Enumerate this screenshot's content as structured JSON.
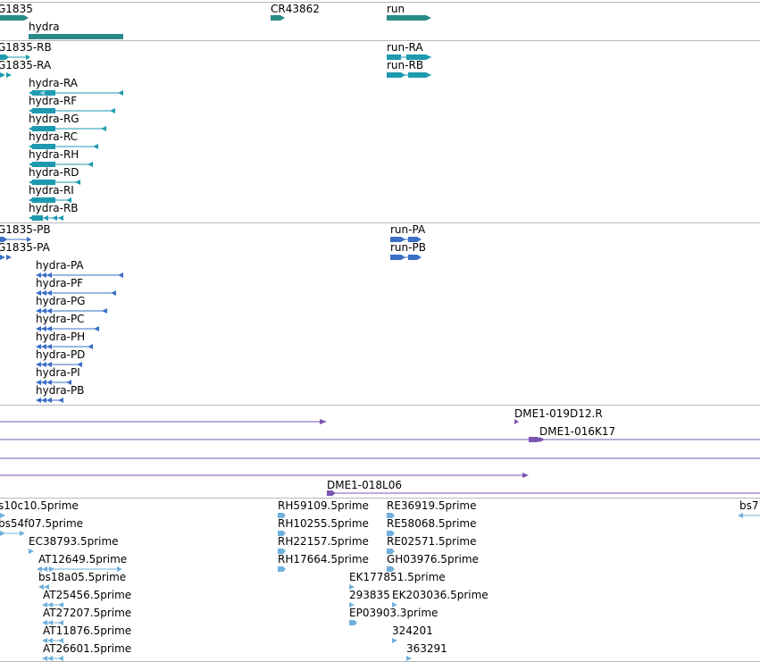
{
  "tracks": [
    {
      "id": "genes",
      "color": "#2a8a87",
      "features": [
        {
          "label": "G1835",
          "style": "block-arrow"
        },
        {
          "label": "CR43862",
          "style": "block-arrow"
        },
        {
          "label": "run",
          "style": "block-arrow"
        },
        {
          "label": "hydra",
          "style": "block"
        }
      ]
    },
    {
      "id": "transcripts",
      "color": "#1e9ab0",
      "features": [
        {
          "label": "G1835-RB"
        },
        {
          "label": "G1835-RA"
        },
        {
          "label": "run-RA"
        },
        {
          "label": "run-RB"
        },
        {
          "label": "hydra-RA"
        },
        {
          "label": "hydra-RF"
        },
        {
          "label": "hydra-RG"
        },
        {
          "label": "hydra-RC"
        },
        {
          "label": "hydra-RH"
        },
        {
          "label": "hydra-RD"
        },
        {
          "label": "hydra-RI"
        },
        {
          "label": "hydra-RB"
        }
      ]
    },
    {
      "id": "proteins",
      "color": "#3a6fc6",
      "features": [
        {
          "label": "G1835-PB"
        },
        {
          "label": "G1835-PA"
        },
        {
          "label": "run-PA"
        },
        {
          "label": "run-PB"
        },
        {
          "label": "hydra-PA"
        },
        {
          "label": "hydra-PF"
        },
        {
          "label": "hydra-PG"
        },
        {
          "label": "hydra-PC"
        },
        {
          "label": "hydra-PH"
        },
        {
          "label": "hydra-PD"
        },
        {
          "label": "hydra-PI"
        },
        {
          "label": "hydra-PB"
        }
      ]
    },
    {
      "id": "clones",
      "color": "#7b55b0",
      "features": [
        {
          "label": "DME1-019D12.R"
        },
        {
          "label": "DME1-016K17"
        },
        {
          "label": "DME1-018L06"
        },
        {
          "label": ""
        },
        {
          "label": ""
        },
        {
          "label": ""
        }
      ]
    },
    {
      "id": "ests",
      "color": "#6fb0dc",
      "features": [
        {
          "label": "s10c10.5prime"
        },
        {
          "label": "bs54f07.5prime"
        },
        {
          "label": "EC38793.5prime"
        },
        {
          "label": "AT12649.5prime"
        },
        {
          "label": "bs18a05.5prime"
        },
        {
          "label": "AT25456.5prime"
        },
        {
          "label": "AT27207.5prime"
        },
        {
          "label": "AT11876.5prime"
        },
        {
          "label": "AT26601.5prime"
        },
        {
          "label": "RH59109.5prime"
        },
        {
          "label": "RH10255.5prime"
        },
        {
          "label": "RH22157.5prime"
        },
        {
          "label": "RH17664.5prime"
        },
        {
          "label": "RE36919.5prime"
        },
        {
          "label": "RE58068.5prime"
        },
        {
          "label": "RE02571.5prime"
        },
        {
          "label": "GH03976.5prime"
        },
        {
          "label": "EK177851.5prime"
        },
        {
          "label": "293835"
        },
        {
          "label": "EK203036.5prime"
        },
        {
          "label": "EP03903.3prime"
        },
        {
          "label": "324201"
        },
        {
          "label": "363291"
        },
        {
          "label": "bs7"
        }
      ]
    }
  ]
}
